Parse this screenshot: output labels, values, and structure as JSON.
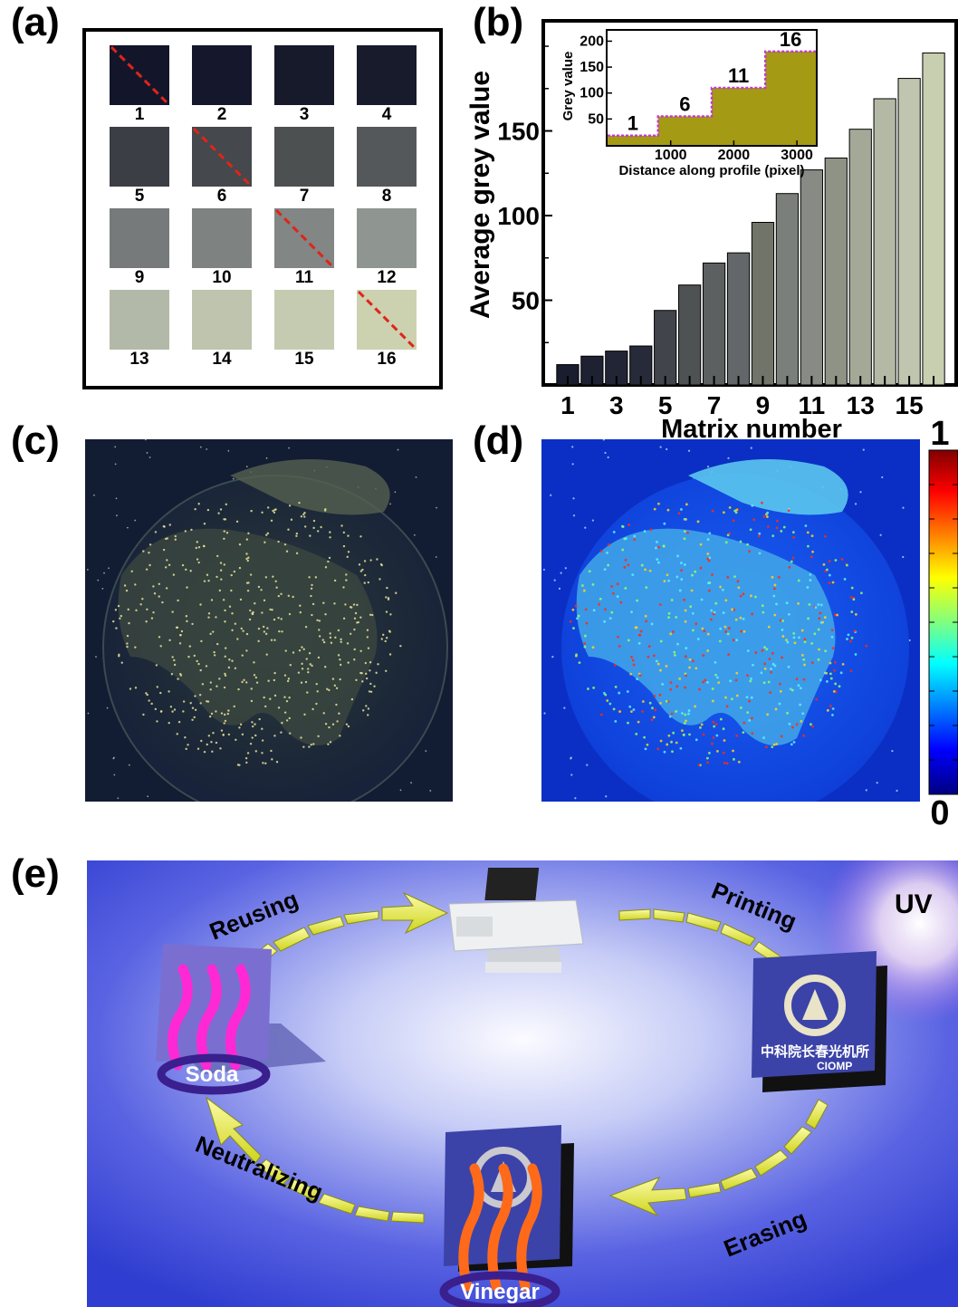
{
  "panel_labels": {
    "a": "(a)",
    "b": "(b)",
    "c": "(c)",
    "d": "(d)",
    "e": "(e)"
  },
  "panel_a": {
    "numbers": [
      "1",
      "2",
      "3",
      "4",
      "5",
      "6",
      "7",
      "8",
      "9",
      "10",
      "11",
      "12",
      "13",
      "14",
      "15",
      "16"
    ],
    "colors": [
      "#13162a",
      "#15182c",
      "#171a2b",
      "#181b2c",
      "#3b3e45",
      "#45484c",
      "#4d5051",
      "#54585a",
      "#777a7a",
      "#7e8281",
      "#828684",
      "#8f9590",
      "#b3b9a8",
      "#bec4ad",
      "#c5cbb0",
      "#ccd1b0"
    ],
    "marked": [
      "1",
      "6",
      "11",
      "16"
    ],
    "dash_color": "#e0241a"
  },
  "panel_b": {
    "ylabel": "Average grey value",
    "xlabel": "Matrix number",
    "inset_ylabel": "Grey value",
    "inset_xlabel": "Distance along profile (pixel)",
    "inset_step_labels": [
      "1",
      "6",
      "11",
      "16"
    ]
  },
  "panel_c": {
    "caption": ""
  },
  "panel_d": {
    "colorbar_max": "1",
    "colorbar_min": "0"
  },
  "panel_e": {
    "steps": {
      "printing": "Printing",
      "erasing": "Erasing",
      "neutralizing": "Neutralizing",
      "reusing": "Reusing"
    },
    "uv_label": "UV",
    "soda_label": "Soda",
    "vinegar_label": "Vinegar",
    "logo_text_cn": "中科院长春光机所",
    "logo_text_en": "CIOMP",
    "background_colors": [
      "#3a47d8",
      "#f4f4ff"
    ],
    "arrow_color": "#f1f24a"
  },
  "chart_data": [
    {
      "type": "bar",
      "title": "",
      "xlabel": "Matrix number",
      "ylabel": "Average grey value",
      "categories": [
        "1",
        "2",
        "3",
        "4",
        "5",
        "6",
        "7",
        "8",
        "9",
        "10",
        "11",
        "12",
        "13",
        "14",
        "15",
        "16"
      ],
      "x_tick_labels": [
        "1",
        "3",
        "5",
        "7",
        "9",
        "11",
        "13",
        "15"
      ],
      "y_tick_labels": [
        "50",
        "100",
        "150"
      ],
      "values": [
        12,
        17,
        20,
        23,
        44,
        59,
        72,
        78,
        96,
        113,
        127,
        134,
        151,
        169,
        181,
        196
      ],
      "bar_colors": [
        "#191d2d",
        "#1d2131",
        "#212536",
        "#262a39",
        "#41454b",
        "#4e5253",
        "#5c6061",
        "#63676a",
        "#707469",
        "#7b7f7c",
        "#878b84",
        "#8f9386",
        "#a4a997",
        "#b4b9a5",
        "#bfc5ae",
        "#c8cfb1"
      ],
      "ylim": [
        0,
        215
      ],
      "xlim": [
        0,
        17
      ],
      "grid": false
    },
    {
      "type": "area",
      "title": "",
      "xlabel": "Distance along profile (pixel)",
      "ylabel": "Grey value",
      "x_tick_labels": [
        "1000",
        "2000",
        "3000"
      ],
      "y_tick_labels": [
        "50",
        "100",
        "150",
        "200"
      ],
      "x": [
        0,
        800,
        800,
        1650,
        1650,
        2500,
        2500,
        3300
      ],
      "y": [
        18,
        18,
        55,
        55,
        110,
        110,
        180,
        180
      ],
      "step_labels": [
        "1",
        "6",
        "11",
        "16"
      ],
      "xlim": [
        0,
        3300
      ],
      "ylim": [
        0,
        220
      ],
      "fill_color": "#a59a14",
      "line_color": "#c23bd1"
    }
  ]
}
